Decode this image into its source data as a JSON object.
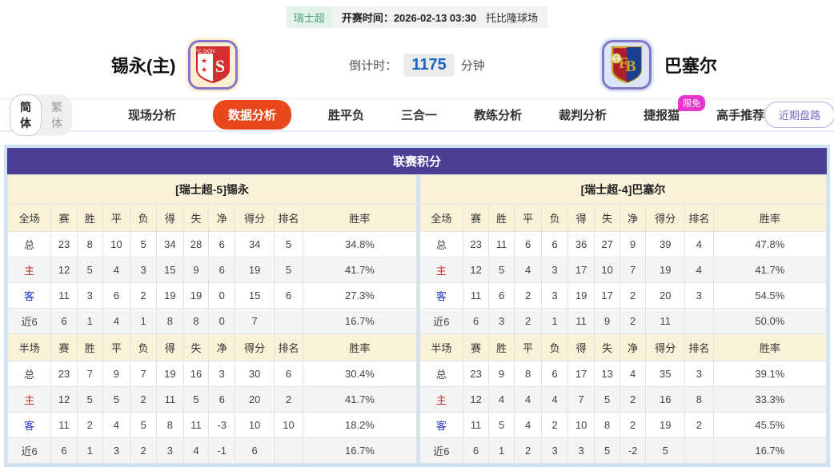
{
  "header": {
    "league_badge": "瑞士超",
    "kickoff_label": "开赛时间：2026-02-13 03:30",
    "venue": "托比隆球场"
  },
  "teams": {
    "home": {
      "name": "锡永(主)",
      "logo": "fc-sion-crest"
    },
    "away": {
      "name": "巴塞尔",
      "logo": "fc-basel-crest"
    },
    "countdown": {
      "label": "倒计时：",
      "value": "1175",
      "unit": "分钟"
    }
  },
  "nav": {
    "lang": {
      "simplified": "简体",
      "traditional": "繁体"
    },
    "tabs": {
      "live": "现场分析",
      "data": "数据分析",
      "wdl": "胜平负",
      "three_in_one": "三合一",
      "coach": "教练分析",
      "referee": "裁判分析",
      "jiebao_cat": "捷报猫",
      "expert": "高手推荐"
    },
    "active_tab": "数据分析",
    "limited_free_badge": "限免",
    "recent_button": "近期盘路"
  },
  "table": {
    "title": "联赛积分",
    "columns_full": [
      "全场",
      "赛",
      "胜",
      "平",
      "负",
      "得",
      "失",
      "净",
      "得分",
      "排名",
      "胜率"
    ],
    "columns_half": [
      "半场",
      "赛",
      "胜",
      "平",
      "负",
      "得",
      "失",
      "净",
      "得分",
      "排名",
      "胜率"
    ],
    "home": {
      "title": "[瑞士超-5]锡永",
      "full_rows": [
        {
          "label": "总",
          "values": [
            "23",
            "8",
            "10",
            "5",
            "34",
            "28",
            "6",
            "34",
            "5",
            "34.8%"
          ]
        },
        {
          "label": "主",
          "values": [
            "12",
            "5",
            "4",
            "3",
            "15",
            "9",
            "6",
            "19",
            "5",
            "41.7%"
          ]
        },
        {
          "label": "客",
          "values": [
            "11",
            "3",
            "6",
            "2",
            "19",
            "19",
            "0",
            "15",
            "6",
            "27.3%"
          ]
        },
        {
          "label": "近6",
          "values": [
            "6",
            "1",
            "4",
            "1",
            "8",
            "8",
            "0",
            "7",
            "",
            "16.7%"
          ]
        }
      ],
      "half_rows": [
        {
          "label": "总",
          "values": [
            "23",
            "7",
            "9",
            "7",
            "19",
            "16",
            "3",
            "30",
            "6",
            "30.4%"
          ]
        },
        {
          "label": "主",
          "values": [
            "12",
            "5",
            "5",
            "2",
            "11",
            "5",
            "6",
            "20",
            "2",
            "41.7%"
          ]
        },
        {
          "label": "客",
          "values": [
            "11",
            "2",
            "4",
            "5",
            "8",
            "11",
            "-3",
            "10",
            "10",
            "18.2%"
          ]
        },
        {
          "label": "近6",
          "values": [
            "6",
            "1",
            "3",
            "2",
            "3",
            "4",
            "-1",
            "6",
            "",
            "16.7%"
          ]
        }
      ]
    },
    "away": {
      "title": "[瑞士超-4]巴塞尔",
      "full_rows": [
        {
          "label": "总",
          "values": [
            "23",
            "11",
            "6",
            "6",
            "36",
            "27",
            "9",
            "39",
            "4",
            "47.8%"
          ]
        },
        {
          "label": "主",
          "values": [
            "12",
            "5",
            "4",
            "3",
            "17",
            "10",
            "7",
            "19",
            "4",
            "41.7%"
          ]
        },
        {
          "label": "客",
          "values": [
            "11",
            "6",
            "2",
            "3",
            "19",
            "17",
            "2",
            "20",
            "3",
            "54.5%"
          ]
        },
        {
          "label": "近6",
          "values": [
            "6",
            "3",
            "2",
            "1",
            "11",
            "9",
            "2",
            "11",
            "",
            "50.0%"
          ]
        }
      ],
      "half_rows": [
        {
          "label": "总",
          "values": [
            "23",
            "9",
            "8",
            "6",
            "17",
            "13",
            "4",
            "35",
            "3",
            "39.1%"
          ]
        },
        {
          "label": "主",
          "values": [
            "12",
            "4",
            "4",
            "4",
            "7",
            "5",
            "2",
            "16",
            "8",
            "33.3%"
          ]
        },
        {
          "label": "客",
          "values": [
            "11",
            "5",
            "4",
            "2",
            "10",
            "8",
            "2",
            "19",
            "2",
            "45.5%"
          ]
        },
        {
          "label": "近6",
          "values": [
            "6",
            "1",
            "2",
            "3",
            "3",
            "5",
            "-2",
            "5",
            "",
            "16.7%"
          ]
        }
      ]
    }
  },
  "colors": {
    "title_bar": "#4b3e94",
    "active_tab": "#e8481c",
    "limited_free_badge": "#e535cd",
    "header_cream": "#fbf1d8",
    "outer_border_blue": "#cfe2f3",
    "countdown_blue": "#1b62c4",
    "home_row_red": "#cc2a2a",
    "away_row_blue": "#2636c8",
    "league_badge_green": "#4fa278"
  }
}
